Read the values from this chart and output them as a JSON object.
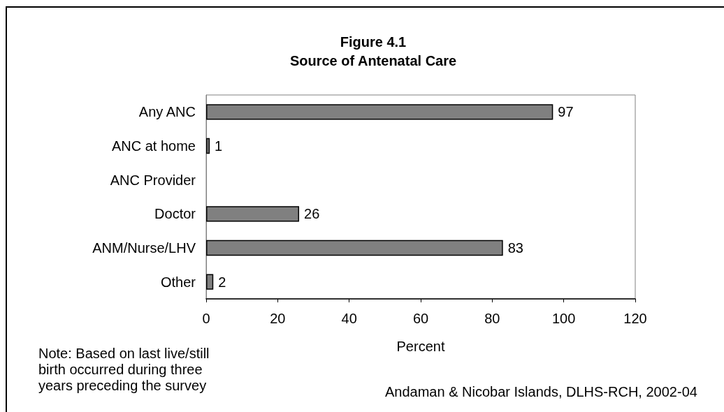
{
  "chart_data": {
    "type": "bar",
    "orientation": "horizontal",
    "title": "Figure 4.1",
    "subtitle": "Source of Antenatal Care",
    "categories": [
      "Any ANC",
      "ANC at home",
      "ANC Provider",
      "Doctor",
      "ANM/Nurse/LHV",
      "Other"
    ],
    "values": [
      97,
      1,
      null,
      26,
      83,
      2
    ],
    "color": "#808080",
    "xlim": [
      0,
      120
    ],
    "xticks": [
      0,
      20,
      40,
      60,
      80,
      100,
      120
    ],
    "xlabel": "Percent",
    "data_labels": true,
    "annotations": [
      "Note: Based on last live/still birth occurred during three years preceding the survey",
      "Andaman & Nicobar Islands, DLHS-RCH, 2002-04"
    ]
  }
}
